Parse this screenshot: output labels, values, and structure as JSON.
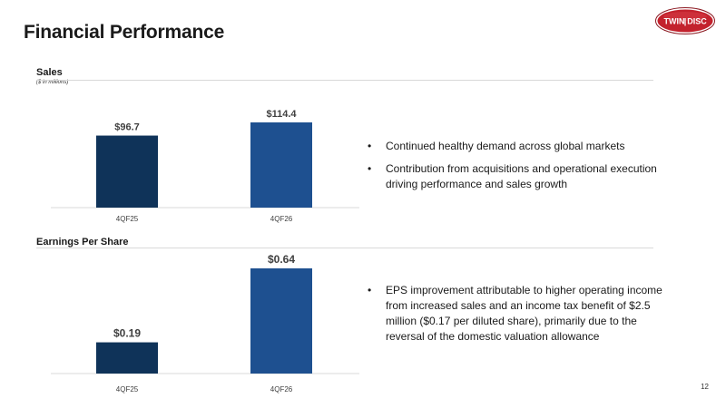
{
  "slide": {
    "title": "Financial Performance",
    "page_number": "12",
    "logo_text": [
      "TWIN",
      "DISC"
    ]
  },
  "colors": {
    "bar_dark": "#0f3359",
    "bar_medium": "#1e5090",
    "logo_red": "#c3222d",
    "gridline": "#d9d9d9"
  },
  "sales": {
    "title": "Sales",
    "subtitle": "($ in millions)",
    "bullets": [
      "Continued healthy demand across global markets",
      "Contribution from acquisitions and operational execution driving performance and sales growth"
    ]
  },
  "eps": {
    "title": "Earnings Per Share",
    "bullets": [
      "EPS improvement attributable to higher operating income from increased sales and an income tax benefit of $2.5 million ($0.17 per diluted share), primarily due to the reversal of the domestic valuation allowance"
    ]
  },
  "chart_data": [
    {
      "type": "bar",
      "title": "Sales",
      "subtitle": "($ in millions)",
      "categories": [
        "4QF25",
        "4QF26"
      ],
      "values": [
        96.7,
        114.4
      ],
      "data_labels": [
        "$96.7",
        "$114.4"
      ],
      "bar_colors": [
        "#0f3359",
        "#1e5090"
      ],
      "ylim": [
        0,
        114.4
      ],
      "grid": false,
      "legend": "none"
    },
    {
      "type": "bar",
      "title": "Earnings Per Share",
      "categories": [
        "4QF25",
        "4QF26"
      ],
      "values": [
        0.19,
        0.64
      ],
      "data_labels": [
        "$0.19",
        "$0.64"
      ],
      "bar_colors": [
        "#0f3359",
        "#1e5090"
      ],
      "ylim": [
        0,
        0.64
      ],
      "grid": false,
      "legend": "none"
    }
  ]
}
